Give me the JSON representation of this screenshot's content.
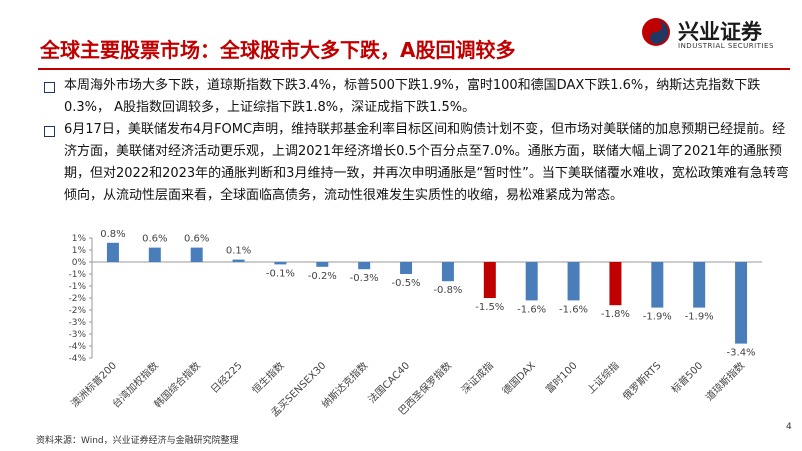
{
  "header": {
    "title": "全球主要股票市场：全球股市大多下跌，A股回调较多",
    "logo": "兴业证券",
    "logo_en": "INDUSTRIAL SECURITIES"
  },
  "bullets": [
    "本周海外市场大多下跌，道琼斯指数下跌3.4%，标普500下跌1.9%，富时100和德国DAX下跌1.6%，纳斯达克指数下跌0.3%， A股指数回调较多，上证综指下跌1.8%，深证成指下跌1.5%。",
    "6月17日，美联储发布4月FOMC声明，维持联邦基金利率目标区间和购债计划不变，但市场对美联储的加息预期已经提前。经济方面，美联储对经济活动更乐观，上调2021年经济增长0.5个百分点至7.0%。通胀方面，联储大幅上调了2021年的通胀预期，但对2022和2023年的通胀判断和3月维持一致，并再次申明通胀是“暂时性”。当下美联储覆水难收，宽松政策难有急转弯倾向，从流动性层面来看，全球面临高债务，流动性很难发生实质性的收缩，易松难紧成为常态。"
  ],
  "chart_data": {
    "type": "bar",
    "categories": [
      "澳洲标普200",
      "台湾加权指数",
      "韩国综合指数",
      "日经225",
      "恒生指数",
      "孟买SENSEX30",
      "纳斯达克指数",
      "法国CAC40",
      "巴西圣保罗指数",
      "深证成指",
      "德国DAX",
      "富时100",
      "上证综指",
      "俄罗斯RTS",
      "标普500",
      "道琼斯指数"
    ],
    "values": [
      0.8,
      0.6,
      0.6,
      0.1,
      -0.1,
      -0.2,
      -0.3,
      -0.5,
      -0.8,
      -1.5,
      -1.6,
      -1.6,
      -1.8,
      -1.9,
      -1.9,
      -3.4
    ],
    "value_labels": [
      "0.8%",
      "0.6%",
      "0.6%",
      "0.1%",
      "-0.1%",
      "-0.2%",
      "-0.3%",
      "-0.5%",
      "-0.8%",
      "-1.5%",
      "-1.6%",
      "-1.6%",
      "-1.8%",
      "-1.9%",
      "-1.9%",
      "-3.4%"
    ],
    "colors": [
      "#4a7ebb",
      "#4a7ebb",
      "#4a7ebb",
      "#4a7ebb",
      "#4a7ebb",
      "#4a7ebb",
      "#4a7ebb",
      "#4a7ebb",
      "#4a7ebb",
      "#c00000",
      "#4a7ebb",
      "#4a7ebb",
      "#c00000",
      "#4a7ebb",
      "#4a7ebb",
      "#4a7ebb"
    ],
    "ylim": [
      -4,
      1
    ],
    "yticks": [
      {
        "value": 1,
        "label": "1%"
      },
      {
        "value": 0.5,
        "label": "1%"
      },
      {
        "value": 0,
        "label": "0%"
      },
      {
        "value": -0.5,
        "label": "-1%"
      },
      {
        "value": -1,
        "label": "-1%"
      },
      {
        "value": -1.5,
        "label": "-2%"
      },
      {
        "value": -2,
        "label": "-2%"
      },
      {
        "value": -2.5,
        "label": "-3%"
      },
      {
        "value": -3,
        "label": "-3%"
      },
      {
        "value": -3.5,
        "label": "-4%"
      },
      {
        "value": -4,
        "label": "-4%"
      }
    ]
  },
  "footer": {
    "source": "资料来源：Wind，兴业证券经济与金融研究院整理",
    "page": "4"
  }
}
